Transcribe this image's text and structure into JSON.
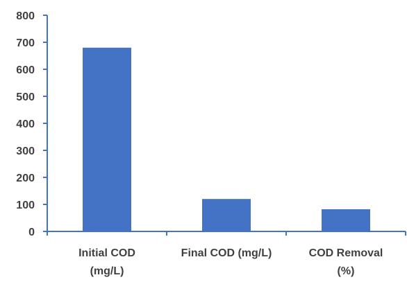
{
  "chart_data": {
    "type": "bar",
    "categories": [
      [
        "Initial COD",
        "(mg/L)"
      ],
      [
        "Final COD (mg/L)"
      ],
      [
        "COD Removal",
        "(%)"
      ]
    ],
    "values": [
      680,
      120,
      82
    ],
    "ylim": [
      0,
      800
    ],
    "yticks": [
      0,
      100,
      200,
      300,
      400,
      500,
      600,
      700,
      800
    ],
    "grid": false,
    "legend": "none",
    "colors": {
      "bar": "#4472C4",
      "axis": "#4472C4",
      "text": "#404040"
    }
  }
}
